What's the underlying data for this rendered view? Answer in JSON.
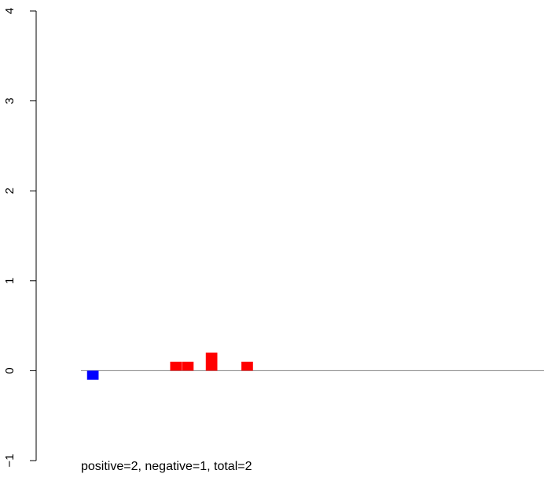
{
  "chart_data": {
    "type": "bar",
    "ylim": [
      -1,
      4
    ],
    "y_ticks": [
      "-1",
      "0",
      "1",
      "2",
      "3",
      "4"
    ],
    "baseline": 0,
    "bars": [
      {
        "x": 1.0,
        "value": -0.1,
        "color": "#0000ff"
      },
      {
        "x": 8.0,
        "value": 0.1,
        "color": "#ff0000"
      },
      {
        "x": 9.0,
        "value": 0.1,
        "color": "#ff0000"
      },
      {
        "x": 11.0,
        "value": 0.2,
        "color": "#ff0000"
      },
      {
        "x": 14.0,
        "value": 0.1,
        "color": "#ff0000"
      }
    ],
    "xlim": [
      0,
      39
    ],
    "footer_text": "positive=2, negative=1, total=2"
  }
}
